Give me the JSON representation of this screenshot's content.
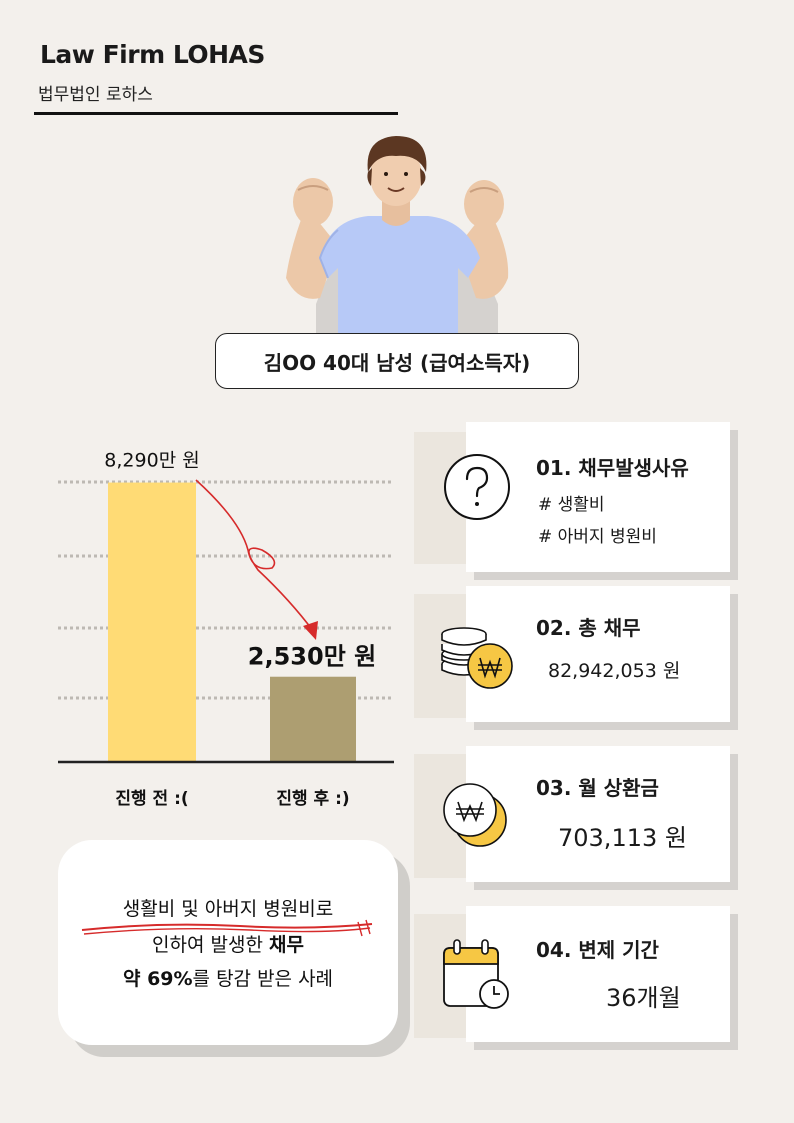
{
  "brand": {
    "name_en": "Law Firm LOHAS",
    "name_ko": "법무법인 로하스"
  },
  "case_label": "김OO 40대 남성 (급여소득자)",
  "chart_data": {
    "type": "bar",
    "categories": [
      "진행 전 :(",
      "진행 후 :)"
    ],
    "values": [
      8290,
      2530
    ],
    "value_labels": [
      "8,290만 원",
      "2,530만 원"
    ],
    "unit": "만 원",
    "ylim": [
      0,
      8900
    ],
    "grid": true,
    "bar_colors": [
      "#ffdb75",
      "#ad9e71"
    ],
    "arrow_color": "#d62b2b"
  },
  "summary": {
    "line1": "생활비 및 아버지 병원비로",
    "line2_normal": "인하여 발생한 ",
    "line2_bold": "채무",
    "line3_bold": "약 69%",
    "line3_normal": "를 탕감 받은 사례"
  },
  "cards": [
    {
      "title": "01. 채무발생사유",
      "tags": [
        "# 생활비",
        "# 아버지 병원비"
      ],
      "icon": "question-icon"
    },
    {
      "title": "02. 총 채무",
      "value": "82,942,053 원",
      "icon": "coins-won-icon"
    },
    {
      "title": "03. 월 상환금",
      "value": "703,113 원",
      "icon": "coin-moon-won-icon"
    },
    {
      "title": "04. 변제 기간",
      "value": "36개월",
      "icon": "calendar-clock-icon"
    }
  ],
  "colors": {
    "background": "#f3f0ec",
    "accent_yellow": "#f6c744",
    "card_bg": "#ffffff",
    "halo": "#ebe6de"
  }
}
